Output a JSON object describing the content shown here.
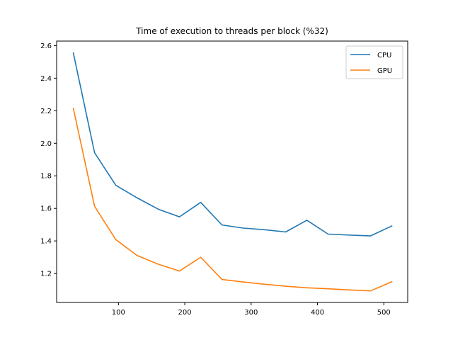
{
  "chart_data": {
    "type": "line",
    "title": "Time of execution to threads per block (%32)",
    "xlabel": "",
    "ylabel": "",
    "xlim": [
      6.8,
      536
    ],
    "ylim": [
      1.022,
      2.628
    ],
    "xticks": [
      100,
      200,
      300,
      400,
      500
    ],
    "yticks": [
      1.2,
      1.4,
      1.6,
      1.8,
      2.0,
      2.2,
      2.4,
      2.6
    ],
    "ytick_labels": [
      "1.2",
      "1.4",
      "1.6",
      "1.8",
      "2.0",
      "2.2",
      "2.4",
      "2.6"
    ],
    "grid": false,
    "legend_position": "upper right",
    "x": [
      32,
      64,
      96,
      128,
      160,
      192,
      224,
      256,
      288,
      320,
      352,
      384,
      416,
      448,
      480,
      512
    ],
    "series": [
      {
        "name": "CPU",
        "color": "#1f77b4",
        "values": [
          2.555,
          1.942,
          1.742,
          1.665,
          1.595,
          1.548,
          1.637,
          1.498,
          1.479,
          1.469,
          1.455,
          1.527,
          1.442,
          1.436,
          1.431,
          1.492
        ]
      },
      {
        "name": "GPU",
        "color": "#ff7f0e",
        "values": [
          2.214,
          1.613,
          1.408,
          1.311,
          1.257,
          1.215,
          1.3,
          1.163,
          1.148,
          1.134,
          1.122,
          1.112,
          1.106,
          1.099,
          1.093,
          1.149
        ]
      }
    ]
  }
}
